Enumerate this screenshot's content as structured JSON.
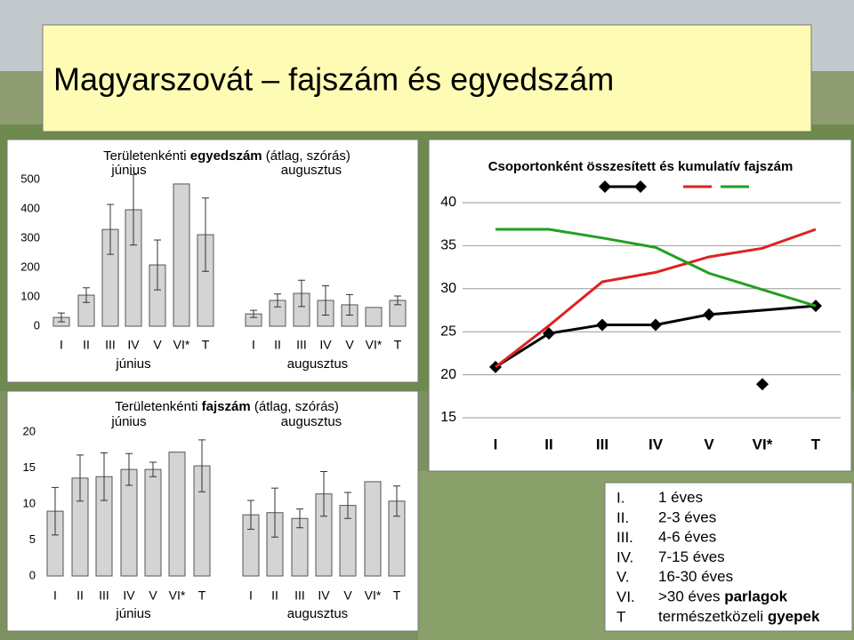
{
  "title": "Magyarszovát – fajszám és egyedszám",
  "chart_data": [
    {
      "type": "bar",
      "title": [
        "Területenkénti",
        "egyedszám",
        "(átlag, szórás)"
      ],
      "categories": [
        "I",
        "II",
        "III",
        "IV",
        "V",
        "VI*",
        "T"
      ],
      "series": [
        {
          "name": "június",
          "color": "#d4d4d4",
          "values": [
            30,
            106,
            330,
            397,
            209,
            485,
            312
          ],
          "errors": [
            15,
            25,
            85,
            120,
            85,
            null,
            125
          ]
        },
        {
          "name": "augusztus",
          "color": "#d4d4d4",
          "values": [
            42,
            88,
            112,
            88,
            73,
            64,
            88
          ],
          "errors": [
            12,
            22,
            45,
            50,
            35,
            null,
            15
          ]
        }
      ],
      "ylim": [
        0,
        500
      ],
      "yticks": [
        0,
        100,
        200,
        300,
        400,
        500
      ]
    },
    {
      "type": "bar",
      "title": [
        "Területenkénti",
        "fajszám",
        "(átlag, szórás)"
      ],
      "categories": [
        "I",
        "II",
        "III",
        "IV",
        "V",
        "VI*",
        "T"
      ],
      "series": [
        {
          "name": "június",
          "color": "#d4d4d4",
          "values": [
            9.0,
            13.6,
            13.8,
            14.8,
            14.8,
            17.2,
            15.3
          ],
          "errors": [
            3.3,
            3.2,
            3.3,
            2.2,
            1.0,
            null,
            3.6
          ]
        },
        {
          "name": "augusztus",
          "color": "#d4d4d4",
          "values": [
            8.5,
            8.8,
            8.0,
            11.4,
            9.8,
            13.1,
            10.4
          ],
          "errors": [
            2.0,
            3.4,
            1.3,
            3.1,
            1.8,
            null,
            2.1
          ]
        }
      ],
      "ylim": [
        0,
        20
      ],
      "yticks": [
        0,
        5,
        10,
        15,
        20
      ]
    },
    {
      "type": "line",
      "title": "Csoportonként összesített és kumulatív fajszám",
      "categories": [
        "I",
        "II",
        "III",
        "IV",
        "V",
        "VI*",
        "T"
      ],
      "series": [
        {
          "color": "#000000",
          "marker": "diamond",
          "connect_gaps": true,
          "values": [
            20.9,
            24.8,
            25.8,
            25.8,
            27.0,
            null,
            28.0
          ]
        },
        {
          "color": "#000000",
          "marker": "diamond",
          "line": false,
          "values": [
            null,
            null,
            null,
            null,
            null,
            18.9,
            null
          ]
        },
        {
          "color": "#dd2222",
          "values": [
            20.9,
            25.7,
            30.8,
            31.9,
            33.7,
            34.7,
            36.9
          ]
        },
        {
          "color": "#22a022",
          "values": [
            36.9,
            36.9,
            35.9,
            34.8,
            31.8,
            29.9,
            28.0
          ]
        }
      ],
      "ylim": [
        15,
        40
      ],
      "yticks": [
        15,
        20,
        25,
        30,
        35,
        40
      ],
      "grid": true,
      "legend": "top"
    }
  ],
  "legend_box": {
    "rows": [
      {
        "code": "I.",
        "text": "1 éves"
      },
      {
        "code": "II.",
        "text": "2-3 éves"
      },
      {
        "code": "III.",
        "text": "4-6 éves"
      },
      {
        "code": "IV.",
        "text": "7-15 éves"
      },
      {
        "code": "V.",
        "text": "16-30 éves"
      },
      {
        "code": "VI.",
        "text": ">30 éves",
        "bold": "parlagok"
      },
      {
        "code": "T",
        "text": "természetközeli",
        "bold": "gyepek"
      }
    ]
  }
}
